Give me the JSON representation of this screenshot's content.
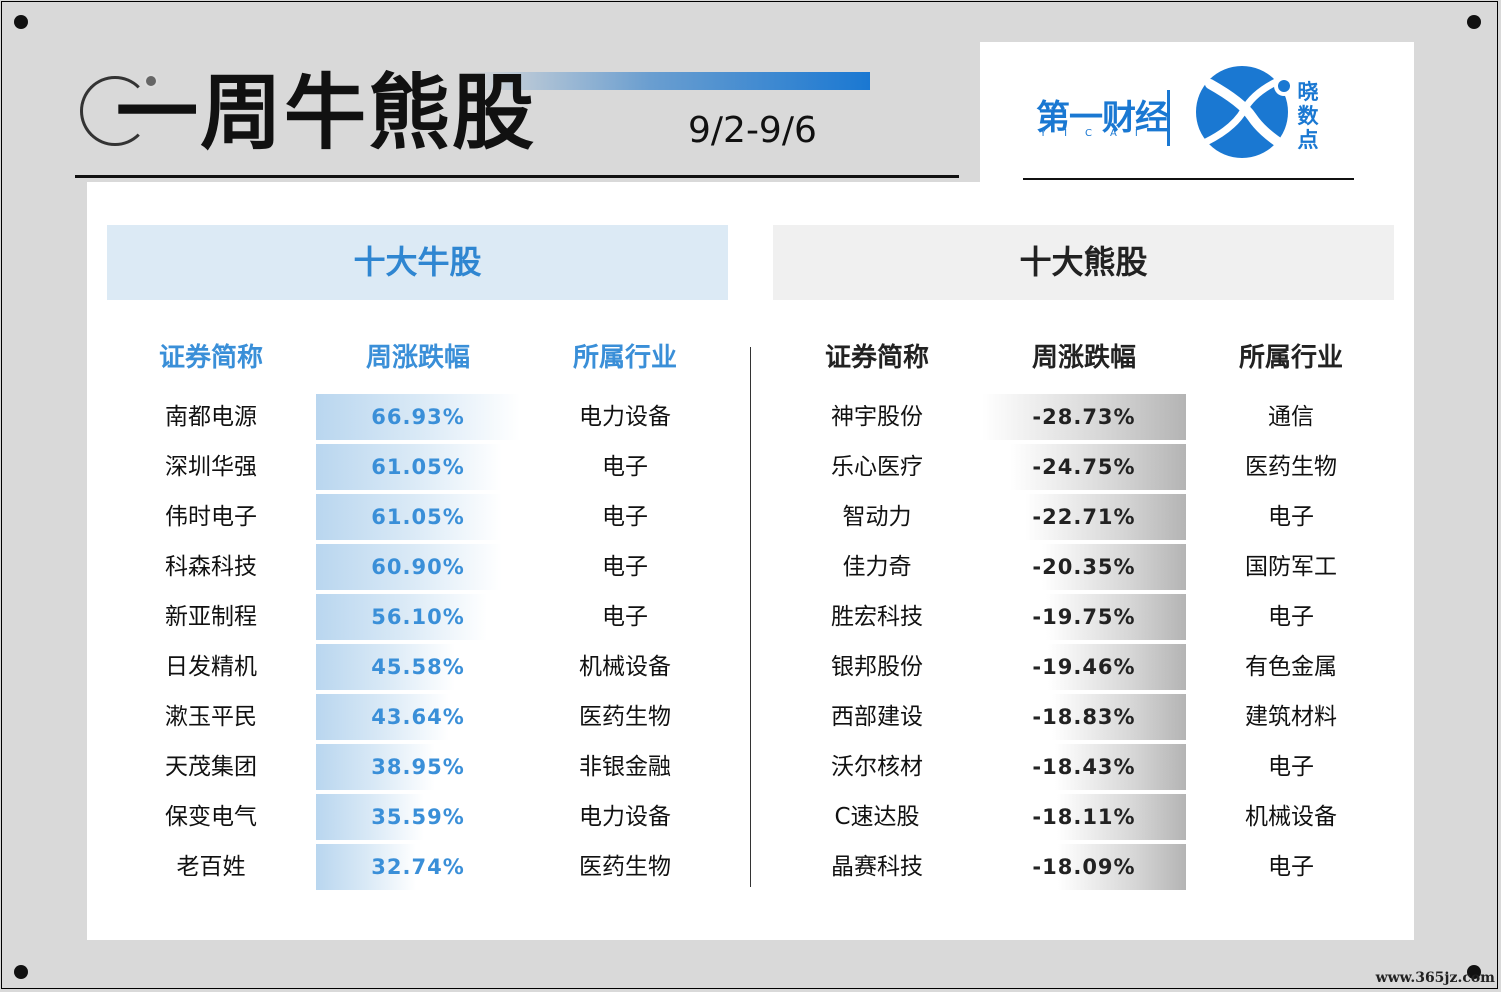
{
  "header": {
    "title": "一周牛熊股",
    "date_range": "9/2-9/6"
  },
  "logo": {
    "brand": "第一财经",
    "brand_sub": "YICAI",
    "product": "晓数点"
  },
  "bull": {
    "section_title": "十大牛股",
    "columns": [
      "证券简称",
      "周涨跌幅",
      "所属行业"
    ],
    "rows": [
      {
        "name": "南都电源",
        "change": "66.93%",
        "change_value": 66.93,
        "industry": "电力设备"
      },
      {
        "name": "深圳华强",
        "change": "61.05%",
        "change_value": 61.05,
        "industry": "电子"
      },
      {
        "name": "伟时电子",
        "change": "61.05%",
        "change_value": 61.05,
        "industry": "电子"
      },
      {
        "name": "科森科技",
        "change": "60.90%",
        "change_value": 60.9,
        "industry": "电子"
      },
      {
        "name": "新亚制程",
        "change": "56.10%",
        "change_value": 56.1,
        "industry": "电子"
      },
      {
        "name": "日发精机",
        "change": "45.58%",
        "change_value": 45.58,
        "industry": "机械设备"
      },
      {
        "name": "漱玉平民",
        "change": "43.64%",
        "change_value": 43.64,
        "industry": "医药生物"
      },
      {
        "name": "天茂集团",
        "change": "38.95%",
        "change_value": 38.95,
        "industry": "非银金融"
      },
      {
        "name": "保变电气",
        "change": "35.59%",
        "change_value": 35.59,
        "industry": "电力设备"
      },
      {
        "name": "老百姓",
        "change": "32.74%",
        "change_value": 32.74,
        "industry": "医药生物"
      }
    ]
  },
  "bear": {
    "section_title": "十大熊股",
    "columns": [
      "证券简称",
      "周涨跌幅",
      "所属行业"
    ],
    "rows": [
      {
        "name": "神宇股份",
        "change": "-28.73%",
        "change_value": -28.73,
        "industry": "通信"
      },
      {
        "name": "乐心医疗",
        "change": "-24.75%",
        "change_value": -24.75,
        "industry": "医药生物"
      },
      {
        "name": "智动力",
        "change": "-22.71%",
        "change_value": -22.71,
        "industry": "电子"
      },
      {
        "name": "佳力奇",
        "change": "-20.35%",
        "change_value": -20.35,
        "industry": "国防军工"
      },
      {
        "name": "胜宏科技",
        "change": "-19.75%",
        "change_value": -19.75,
        "industry": "电子"
      },
      {
        "name": "银邦股份",
        "change": "-19.46%",
        "change_value": -19.46,
        "industry": "有色金属"
      },
      {
        "name": "西部建设",
        "change": "-18.83%",
        "change_value": -18.83,
        "industry": "建筑材料"
      },
      {
        "name": "沃尔核材",
        "change": "-18.43%",
        "change_value": -18.43,
        "industry": "电子"
      },
      {
        "name": "C速达股",
        "change": "-18.11%",
        "change_value": -18.11,
        "industry": "机械设备"
      },
      {
        "name": "晶赛科技",
        "change": "-18.09%",
        "change_value": -18.09,
        "industry": "电子"
      }
    ]
  },
  "watermark": "www.365jz.com",
  "colors": {
    "accent_blue": "#2f86d1",
    "bull_header_bg": "#dceaf5",
    "bear_header_bg": "#f0f0f0",
    "frame_bg": "#d9d9d9"
  }
}
